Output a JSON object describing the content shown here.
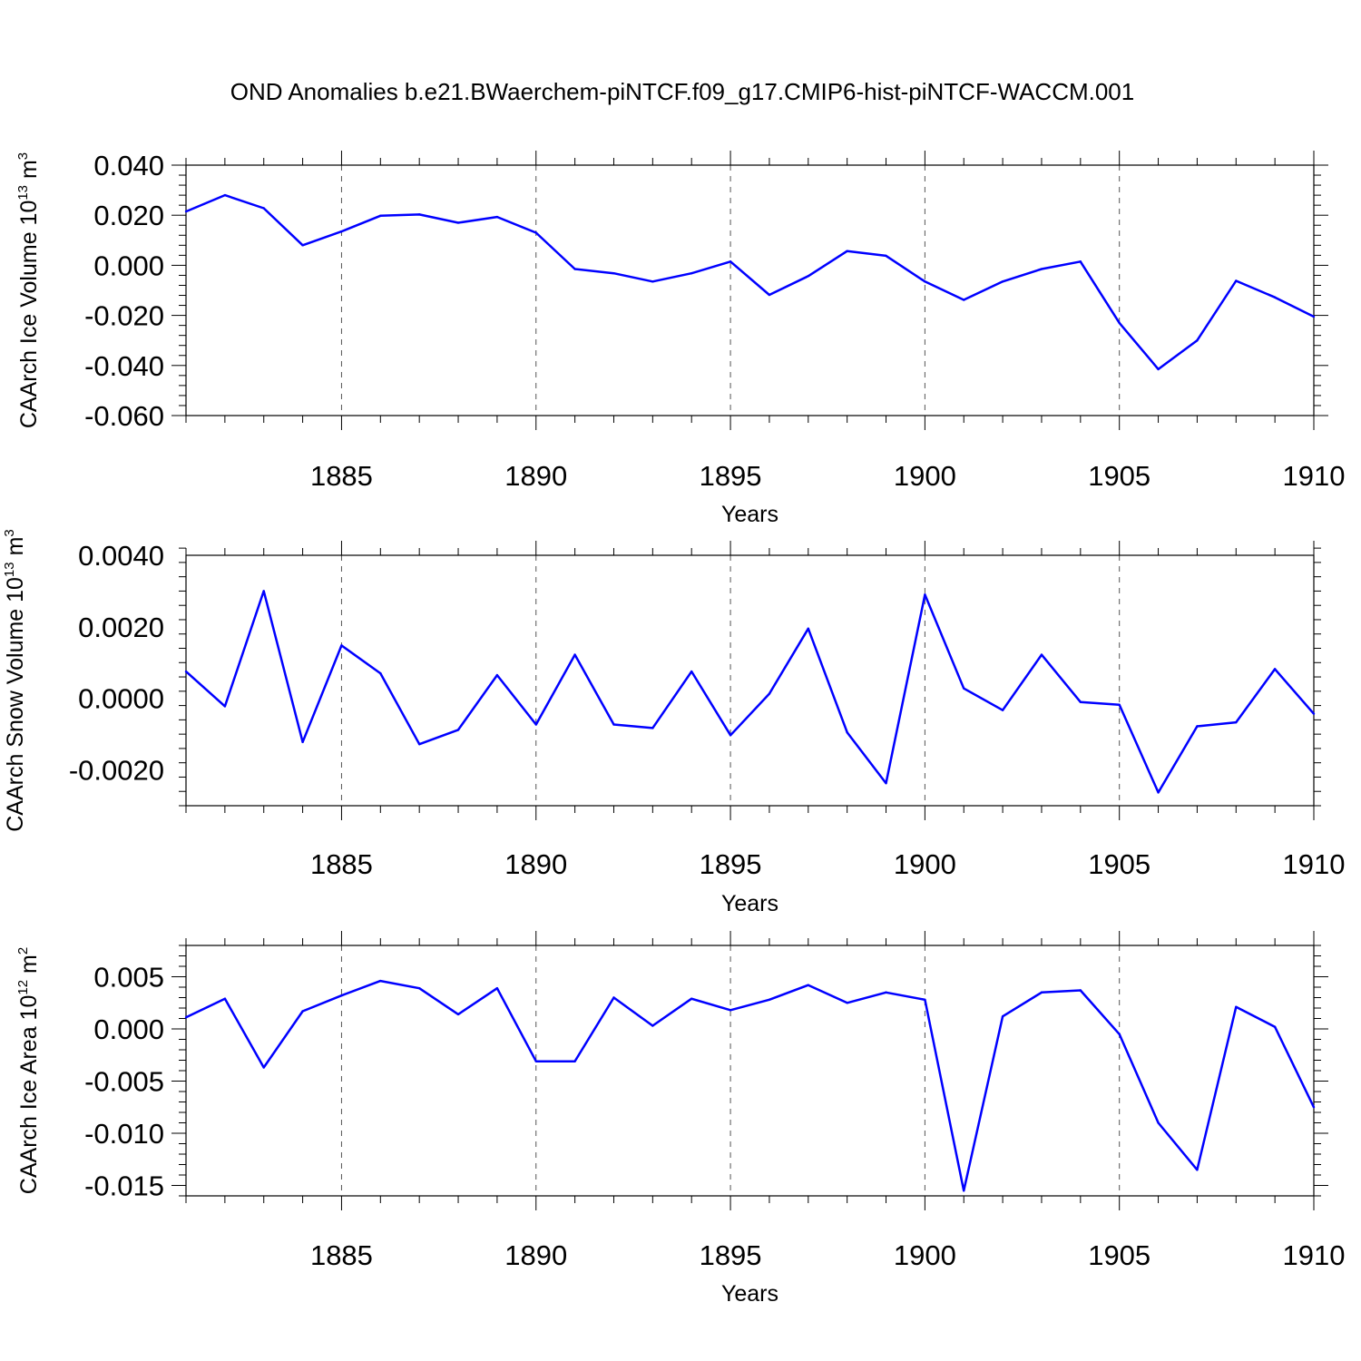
{
  "title": "OND Anomalies b.e21.BWaerchem-piNTCF.f09_g17.CMIP6-hist-piNTCF-WACCM.001",
  "line_color": "#0000ff",
  "chart_data": [
    {
      "type": "line",
      "ylabel": {
        "text": "CAArch Ice Volume 10",
        "sup": "13",
        "unit": " m",
        "unit_sup": "3"
      },
      "xlabel": "Years",
      "xlim": [
        1881,
        1910
      ],
      "ylim": [
        -0.06,
        0.04
      ],
      "yticks": [
        -0.06,
        -0.04,
        -0.02,
        0.0,
        0.02,
        0.04
      ],
      "ytick_labels": [
        "-0.060",
        "-0.040",
        "-0.020",
        "0.000",
        "0.020",
        "0.040"
      ],
      "yminor_step": 0.004,
      "xticks": [
        1885,
        1890,
        1895,
        1900,
        1905,
        1910
      ],
      "xtick_labels": [
        "1885",
        "1890",
        "1895",
        "1900",
        "1905",
        "1910"
      ],
      "x": [
        1881,
        1882,
        1883,
        1884,
        1885,
        1886,
        1887,
        1888,
        1889,
        1890,
        1891,
        1892,
        1893,
        1894,
        1895,
        1896,
        1897,
        1898,
        1899,
        1900,
        1901,
        1902,
        1903,
        1904,
        1905,
        1906,
        1907,
        1908,
        1909,
        1910
      ],
      "series": [
        {
          "name": "CAArch Ice Volume",
          "values": [
            0.0215,
            0.028,
            0.0228,
            0.008,
            0.0135,
            0.0198,
            0.0203,
            0.017,
            0.0193,
            0.013,
            -0.0015,
            -0.0032,
            -0.0065,
            -0.0032,
            0.0015,
            -0.0118,
            -0.0043,
            0.0057,
            0.0038,
            -0.0065,
            -0.0138,
            -0.0065,
            -0.0015,
            0.0015,
            -0.023,
            -0.0415,
            -0.03,
            -0.0062,
            -0.0128,
            -0.0205
          ]
        }
      ]
    },
    {
      "type": "line",
      "ylabel": {
        "text": "CAArch Snow Volume 10",
        "sup": "13",
        "unit": " m",
        "unit_sup": "3"
      },
      "xlabel": "Years",
      "xlim": [
        1881,
        1910
      ],
      "ylim": [
        -0.003,
        0.004
      ],
      "yticks": [
        -0.002,
        0.0,
        0.002,
        0.004
      ],
      "ytick_labels": [
        "-0.0020",
        "0.0000",
        "0.0020",
        "0.0040"
      ],
      "yminor_step": 0.0004,
      "xticks": [
        1885,
        1890,
        1895,
        1900,
        1905,
        1910
      ],
      "xtick_labels": [
        "1885",
        "1890",
        "1895",
        "1900",
        "1905",
        "1910"
      ],
      "x": [
        1881,
        1882,
        1883,
        1884,
        1885,
        1886,
        1887,
        1888,
        1889,
        1890,
        1891,
        1892,
        1893,
        1894,
        1895,
        1896,
        1897,
        1898,
        1899,
        1900,
        1901,
        1902,
        1903,
        1904,
        1905,
        1906,
        1907,
        1908,
        1909,
        1910
      ],
      "series": [
        {
          "name": "CAArch Snow Volume",
          "values": [
            0.00075,
            -0.00022,
            0.003,
            -0.00122,
            0.00148,
            0.0007,
            -0.00128,
            -0.00088,
            0.00065,
            -0.00073,
            0.00122,
            -0.00073,
            -0.00083,
            0.00075,
            -0.00103,
            0.00013,
            0.00195,
            -0.00095,
            -0.00237,
            0.0029,
            0.00028,
            -0.00033,
            0.00122,
            -0.0001,
            -0.00018,
            -0.00263,
            -0.00078,
            -0.00067,
            0.00082,
            -0.00043
          ]
        }
      ]
    },
    {
      "type": "line",
      "ylabel": {
        "text": "CAArch Ice Area 10",
        "sup": "12",
        "unit": " m",
        "unit_sup": "2"
      },
      "xlabel": "Years",
      "xlim": [
        1881,
        1910
      ],
      "ylim": [
        -0.016,
        0.008
      ],
      "yticks": [
        -0.015,
        -0.01,
        -0.005,
        0.0,
        0.005
      ],
      "ytick_labels": [
        "-0.015",
        "-0.010",
        "-0.005",
        "0.000",
        "0.005"
      ],
      "yminor_step": 0.001,
      "xticks": [
        1885,
        1890,
        1895,
        1900,
        1905,
        1910
      ],
      "xtick_labels": [
        "1885",
        "1890",
        "1895",
        "1900",
        "1905",
        "1910"
      ],
      "x": [
        1881,
        1882,
        1883,
        1884,
        1885,
        1886,
        1887,
        1888,
        1889,
        1890,
        1891,
        1892,
        1893,
        1894,
        1895,
        1896,
        1897,
        1898,
        1899,
        1900,
        1901,
        1902,
        1903,
        1904,
        1905,
        1906,
        1907,
        1908,
        1909,
        1910
      ],
      "series": [
        {
          "name": "CAArch Ice Area",
          "values": [
            0.0011,
            0.0029,
            -0.0037,
            0.0017,
            0.0032,
            0.0046,
            0.0039,
            0.0014,
            0.0039,
            -0.0031,
            -0.0031,
            0.003,
            0.0003,
            0.0029,
            0.0018,
            0.0028,
            0.0042,
            0.0025,
            0.0035,
            0.0028,
            -0.0155,
            0.0012,
            0.0035,
            0.0037,
            -0.0005,
            -0.009,
            -0.0135,
            0.0021,
            0.0002,
            -0.0075
          ]
        }
      ]
    }
  ]
}
